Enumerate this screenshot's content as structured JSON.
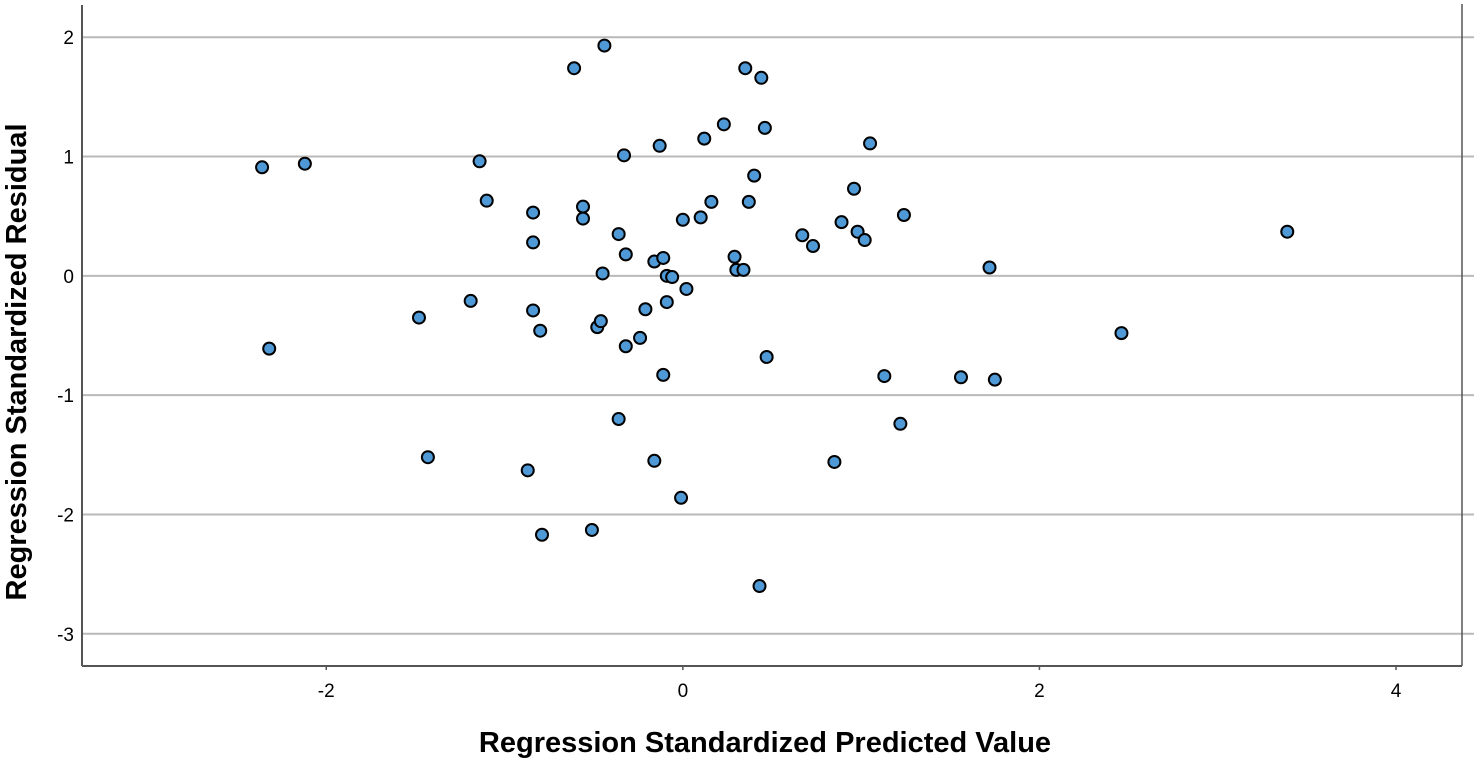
{
  "chart_data": {
    "type": "scatter",
    "title": "",
    "xlabel": "Regression Standardized Predicted Value",
    "ylabel": "Regression Standardized Residual",
    "xlim": [
      -3.37,
      4.37
    ],
    "ylim": [
      -3.27,
      2.27
    ],
    "x_ticks": [
      -2,
      0,
      2,
      4
    ],
    "y_ticks": [
      -3,
      -2,
      -1,
      0,
      1,
      2
    ],
    "x_tick_labels": [
      "-2",
      "0",
      "2",
      "4"
    ],
    "y_tick_labels": [
      "-3",
      "-2",
      "-1",
      "0",
      "1",
      "2"
    ],
    "grid": "horizontal",
    "legend": "none",
    "marker_color": "#4f9ad6",
    "marker_edge_color": "#000000",
    "points": [
      {
        "x": -2.36,
        "y": 0.91
      },
      {
        "x": -2.12,
        "y": 0.94
      },
      {
        "x": -2.32,
        "y": -0.61
      },
      {
        "x": -1.48,
        "y": -0.35
      },
      {
        "x": -1.43,
        "y": -1.52
      },
      {
        "x": -1.19,
        "y": -0.21
      },
      {
        "x": -1.14,
        "y": 0.96
      },
      {
        "x": -1.1,
        "y": 0.63
      },
      {
        "x": -0.87,
        "y": -1.63
      },
      {
        "x": -0.84,
        "y": 0.53
      },
      {
        "x": -0.84,
        "y": 0.28
      },
      {
        "x": -0.84,
        "y": -0.29
      },
      {
        "x": -0.8,
        "y": -0.46
      },
      {
        "x": -0.79,
        "y": -2.17
      },
      {
        "x": -0.61,
        "y": 1.74
      },
      {
        "x": -0.56,
        "y": 0.58
      },
      {
        "x": -0.56,
        "y": 0.48
      },
      {
        "x": -0.51,
        "y": -2.13
      },
      {
        "x": -0.48,
        "y": -0.43
      },
      {
        "x": -0.46,
        "y": -0.38
      },
      {
        "x": -0.45,
        "y": 0.02
      },
      {
        "x": -0.44,
        "y": 1.93
      },
      {
        "x": -0.36,
        "y": 0.35
      },
      {
        "x": -0.36,
        "y": -1.2
      },
      {
        "x": -0.33,
        "y": 1.01
      },
      {
        "x": -0.32,
        "y": 0.18
      },
      {
        "x": -0.32,
        "y": -0.59
      },
      {
        "x": -0.24,
        "y": -0.52
      },
      {
        "x": -0.21,
        "y": -0.28
      },
      {
        "x": -0.16,
        "y": 0.12
      },
      {
        "x": -0.16,
        "y": -1.55
      },
      {
        "x": -0.13,
        "y": 1.09
      },
      {
        "x": -0.11,
        "y": 0.15
      },
      {
        "x": -0.11,
        "y": -0.83
      },
      {
        "x": -0.09,
        "y": 0.0
      },
      {
        "x": -0.09,
        "y": -0.22
      },
      {
        "x": -0.06,
        "y": -0.01
      },
      {
        "x": -0.01,
        "y": -1.86
      },
      {
        "x": 0.0,
        "y": 0.47
      },
      {
        "x": 0.02,
        "y": -0.11
      },
      {
        "x": 0.1,
        "y": 0.49
      },
      {
        "x": 0.12,
        "y": 1.15
      },
      {
        "x": 0.16,
        "y": 0.62
      },
      {
        "x": 0.23,
        "y": 1.27
      },
      {
        "x": 0.29,
        "y": 0.16
      },
      {
        "x": 0.3,
        "y": 0.05
      },
      {
        "x": 0.34,
        "y": 0.05
      },
      {
        "x": 0.35,
        "y": 1.74
      },
      {
        "x": 0.37,
        "y": 0.62
      },
      {
        "x": 0.4,
        "y": 0.84
      },
      {
        "x": 0.43,
        "y": -2.6
      },
      {
        "x": 0.44,
        "y": 1.66
      },
      {
        "x": 0.46,
        "y": 1.24
      },
      {
        "x": 0.47,
        "y": -0.68
      },
      {
        "x": 0.67,
        "y": 0.34
      },
      {
        "x": 0.73,
        "y": 0.25
      },
      {
        "x": 0.85,
        "y": -1.56
      },
      {
        "x": 0.89,
        "y": 0.45
      },
      {
        "x": 0.96,
        "y": 0.73
      },
      {
        "x": 0.98,
        "y": 0.37
      },
      {
        "x": 1.02,
        "y": 0.3
      },
      {
        "x": 1.05,
        "y": 1.11
      },
      {
        "x": 1.13,
        "y": -0.84
      },
      {
        "x": 1.22,
        "y": -1.24
      },
      {
        "x": 1.24,
        "y": 0.51
      },
      {
        "x": 1.56,
        "y": -0.85
      },
      {
        "x": 1.72,
        "y": 0.07
      },
      {
        "x": 1.75,
        "y": -0.87
      },
      {
        "x": 2.46,
        "y": -0.48
      },
      {
        "x": 3.39,
        "y": 0.37
      }
    ]
  }
}
